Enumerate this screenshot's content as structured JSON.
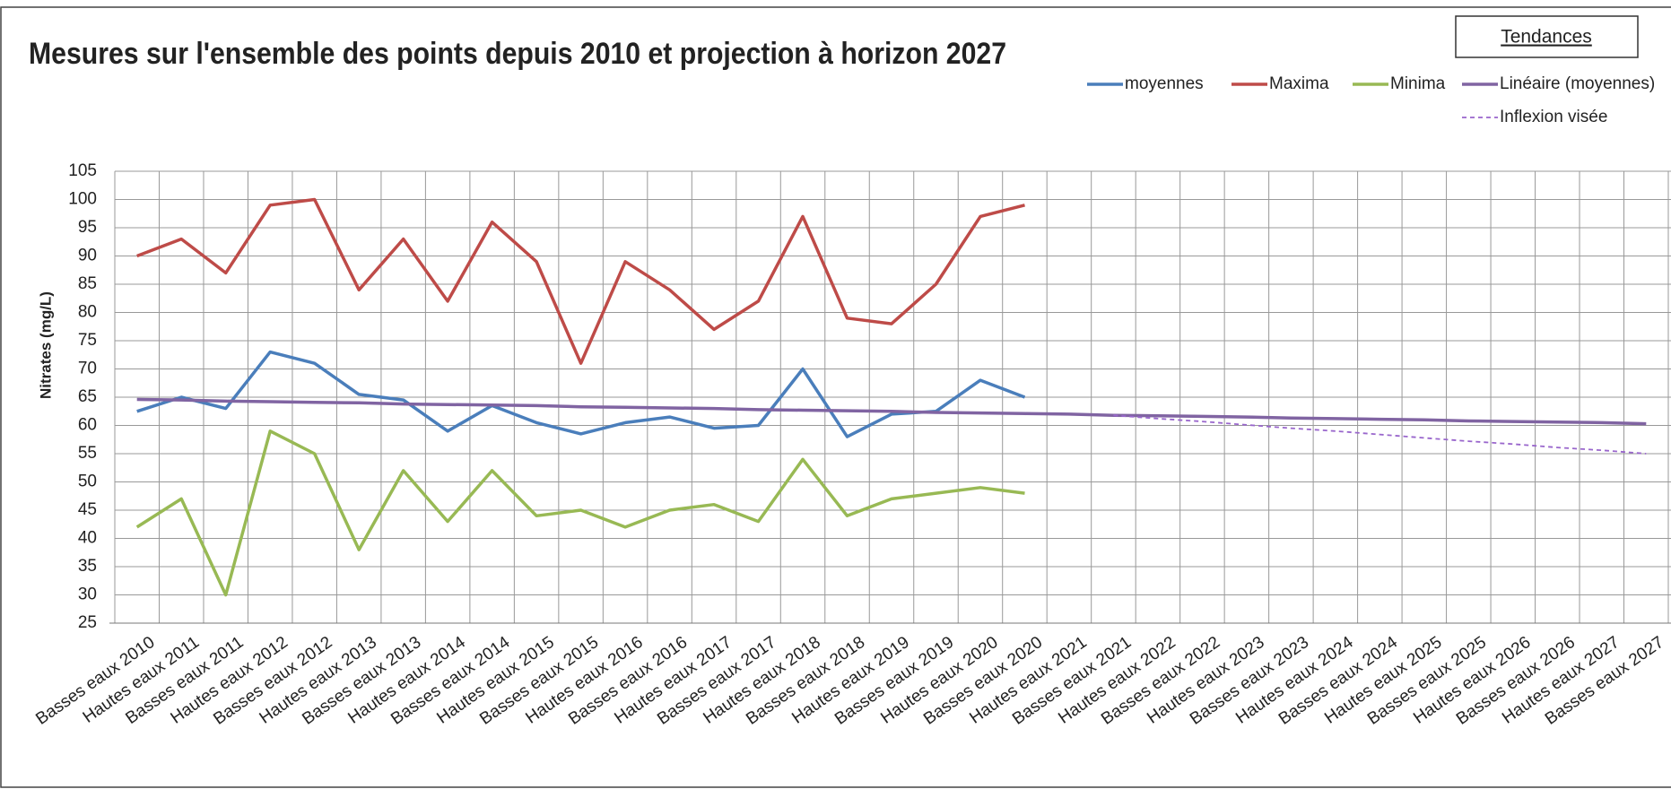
{
  "chart_data": {
    "type": "line",
    "title": "Mesures sur l'ensemble des points depuis 2010 et projection à horizon 2027",
    "y_label": "Nitrates (mg/L)",
    "legend_title": "Tendances",
    "categories": [
      "Basses eaux 2010",
      "Hautes eaux 2011",
      "Basses eaux 2011",
      "Hautes eaux 2012",
      "Basses eaux 2012",
      "Hautes eaux 2013",
      "Basses eaux 2013",
      "Hautes eaux 2014",
      "Basses eaux 2014",
      "Hautes eaux 2015",
      "Basses eaux 2015",
      "Hautes eaux 2016",
      "Basses eaux 2016",
      "Hautes eaux 2017",
      "Basses eaux 2017",
      "Hautes eaux 2018",
      "Basses eaux 2018",
      "Hautes eaux 2019",
      "Basses eaux 2019",
      "Hautes eaux 2020",
      "Basses eaux 2020",
      "Hautes eaux 2021",
      "Basses eaux 2021",
      "Hautes eaux 2022",
      "Basses eaux 2022",
      "Hautes eaux 2023",
      "Basses eaux 2023",
      "Hautes eaux 2024",
      "Basses eaux 2024",
      "Hautes eaux 2025",
      "Basses eaux 2025",
      "Hautes eaux 2026",
      "Basses eaux 2026",
      "Hautes eaux 2027",
      "Basses eaux 2027"
    ],
    "series": [
      {
        "name": "moyennes",
        "color": "#4a7ebb",
        "values": [
          62.5,
          65,
          63,
          73,
          71,
          65.5,
          64.5,
          59,
          63.5,
          60.5,
          58.5,
          60.5,
          61.5,
          59.5,
          60,
          70,
          58,
          62,
          62.5,
          68,
          65,
          null,
          null,
          null,
          null,
          null,
          null,
          null,
          null,
          null,
          null,
          null,
          null,
          null,
          null
        ]
      },
      {
        "name": "Maxima",
        "color": "#be4b48",
        "values": [
          90,
          93,
          87,
          99,
          100,
          84,
          93,
          82,
          96,
          89,
          71,
          89,
          84,
          77,
          82,
          97,
          79,
          78,
          85,
          97,
          99,
          null,
          null,
          null,
          null,
          null,
          null,
          null,
          null,
          null,
          null,
          null,
          null,
          null,
          null
        ]
      },
      {
        "name": "Minima",
        "color": "#98b954",
        "values": [
          42,
          47,
          30,
          59,
          55,
          38,
          52,
          43,
          52,
          44,
          45,
          42,
          45,
          46,
          43,
          54,
          44,
          47,
          48,
          49,
          48,
          null,
          null,
          null,
          null,
          null,
          null,
          null,
          null,
          null,
          null,
          null,
          null,
          null,
          null
        ]
      },
      {
        "name": "Linéaire (moyennes)",
        "color": "#8064a2",
        "values": [
          64.6,
          64.5,
          64.3,
          64.2,
          64.1,
          64.0,
          63.8,
          63.7,
          63.6,
          63.5,
          63.3,
          63.2,
          63.1,
          63.0,
          62.8,
          62.7,
          62.6,
          62.5,
          62.3,
          62.2,
          62.1,
          62.0,
          61.8,
          61.7,
          61.6,
          61.5,
          61.3,
          61.2,
          61.1,
          61.0,
          60.8,
          60.7,
          60.6,
          60.5,
          60.3
        ]
      },
      {
        "name": "Inflexion visée",
        "color": "#9966cc",
        "dashed": true,
        "values": [
          null,
          null,
          null,
          null,
          null,
          null,
          null,
          null,
          null,
          null,
          null,
          null,
          null,
          null,
          null,
          null,
          null,
          null,
          null,
          null,
          null,
          null,
          61.8,
          61.2,
          60.7,
          60.1,
          59.5,
          59.0,
          58.4,
          57.8,
          57.2,
          56.7,
          56.1,
          55.6,
          55.0
        ]
      }
    ],
    "ylim": [
      25,
      105
    ],
    "yticks": [
      25,
      30,
      35,
      40,
      45,
      50,
      55,
      60,
      65,
      70,
      75,
      80,
      85,
      90,
      95,
      100,
      105
    ],
    "grid": true
  }
}
